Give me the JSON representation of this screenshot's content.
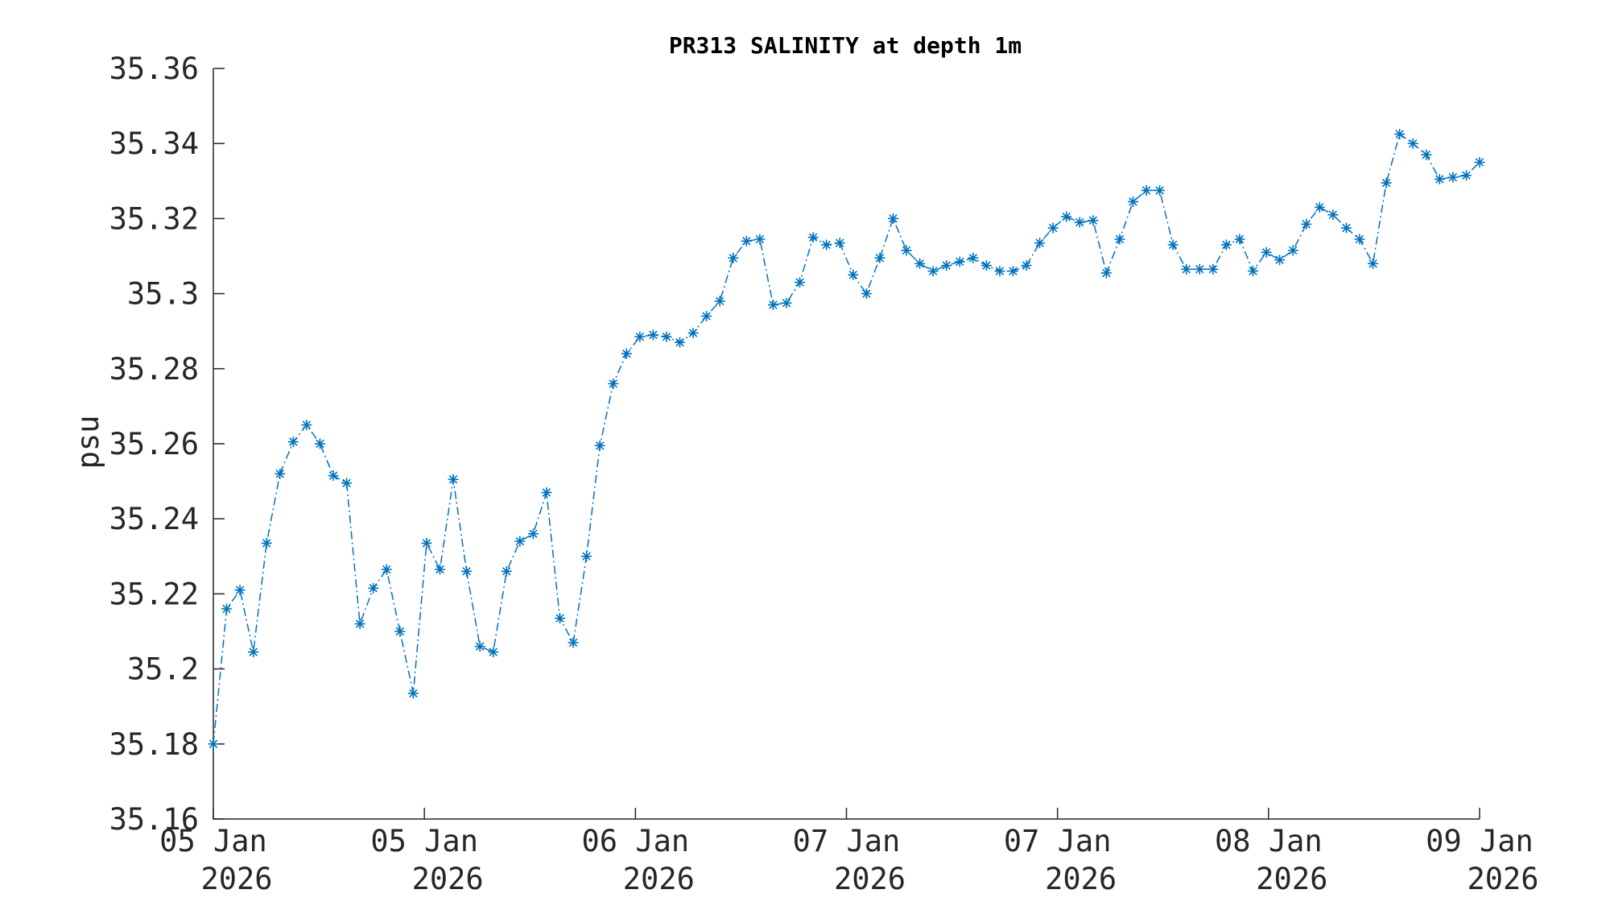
{
  "chart_data": {
    "type": "line",
    "title": "PR313 SALINITY at depth 1m",
    "xlabel": "",
    "ylabel": "psu",
    "ylim": [
      35.16,
      35.36
    ],
    "yticks": [
      "35.16",
      "35.18",
      "35.2",
      "35.22",
      "35.24",
      "35.26",
      "35.28",
      "35.3",
      "35.32",
      "35.34",
      "35.36"
    ],
    "xticks": [
      {
        "line1": "05 Jan",
        "line2": "2026"
      },
      {
        "line1": "05 Jan",
        "line2": "2026"
      },
      {
        "line1": "06 Jan",
        "line2": "2026"
      },
      {
        "line1": "07 Jan",
        "line2": "2026"
      },
      {
        "line1": "07 Jan",
        "line2": "2026"
      },
      {
        "line1": "08 Jan",
        "line2": "2026"
      },
      {
        "line1": "09 Jan",
        "line2": "2026"
      }
    ],
    "grid": false,
    "line_style": "dash-dot",
    "marker": "asterisk",
    "color": "#0072BD",
    "series": [
      {
        "values": [
          35.18,
          35.216,
          35.221,
          35.2045,
          35.2335,
          35.252,
          35.2605,
          35.265,
          35.26,
          35.2515,
          35.2495,
          35.212,
          35.2215,
          35.2265,
          35.21,
          35.1935,
          35.2335,
          35.2265,
          35.2505,
          35.226,
          35.206,
          35.2045,
          35.226,
          35.234,
          35.236,
          35.247,
          35.2135,
          35.207,
          35.23,
          35.2595,
          35.276,
          35.284,
          35.2885,
          35.289,
          35.2885,
          35.287,
          35.2895,
          35.294,
          35.298,
          35.3095,
          35.314,
          35.3145,
          35.297,
          35.2975,
          35.303,
          35.315,
          35.313,
          35.3135,
          35.305,
          35.3,
          35.3095,
          35.32,
          35.3115,
          35.308,
          35.306,
          35.3075,
          35.3085,
          35.3095,
          35.3075,
          35.306,
          35.306,
          35.3075,
          35.3135,
          35.3175,
          35.3205,
          35.319,
          35.3195,
          35.3055,
          35.3145,
          35.3245,
          35.3275,
          35.3275,
          35.313,
          35.3065,
          35.3065,
          35.3065,
          35.313,
          35.3145,
          35.306,
          35.311,
          35.309,
          35.3115,
          35.3185,
          35.323,
          35.321,
          35.3175,
          35.3145,
          35.308,
          35.3295,
          35.3425,
          35.34,
          35.337,
          35.3305,
          35.331,
          35.3315,
          35.335
        ]
      }
    ]
  }
}
